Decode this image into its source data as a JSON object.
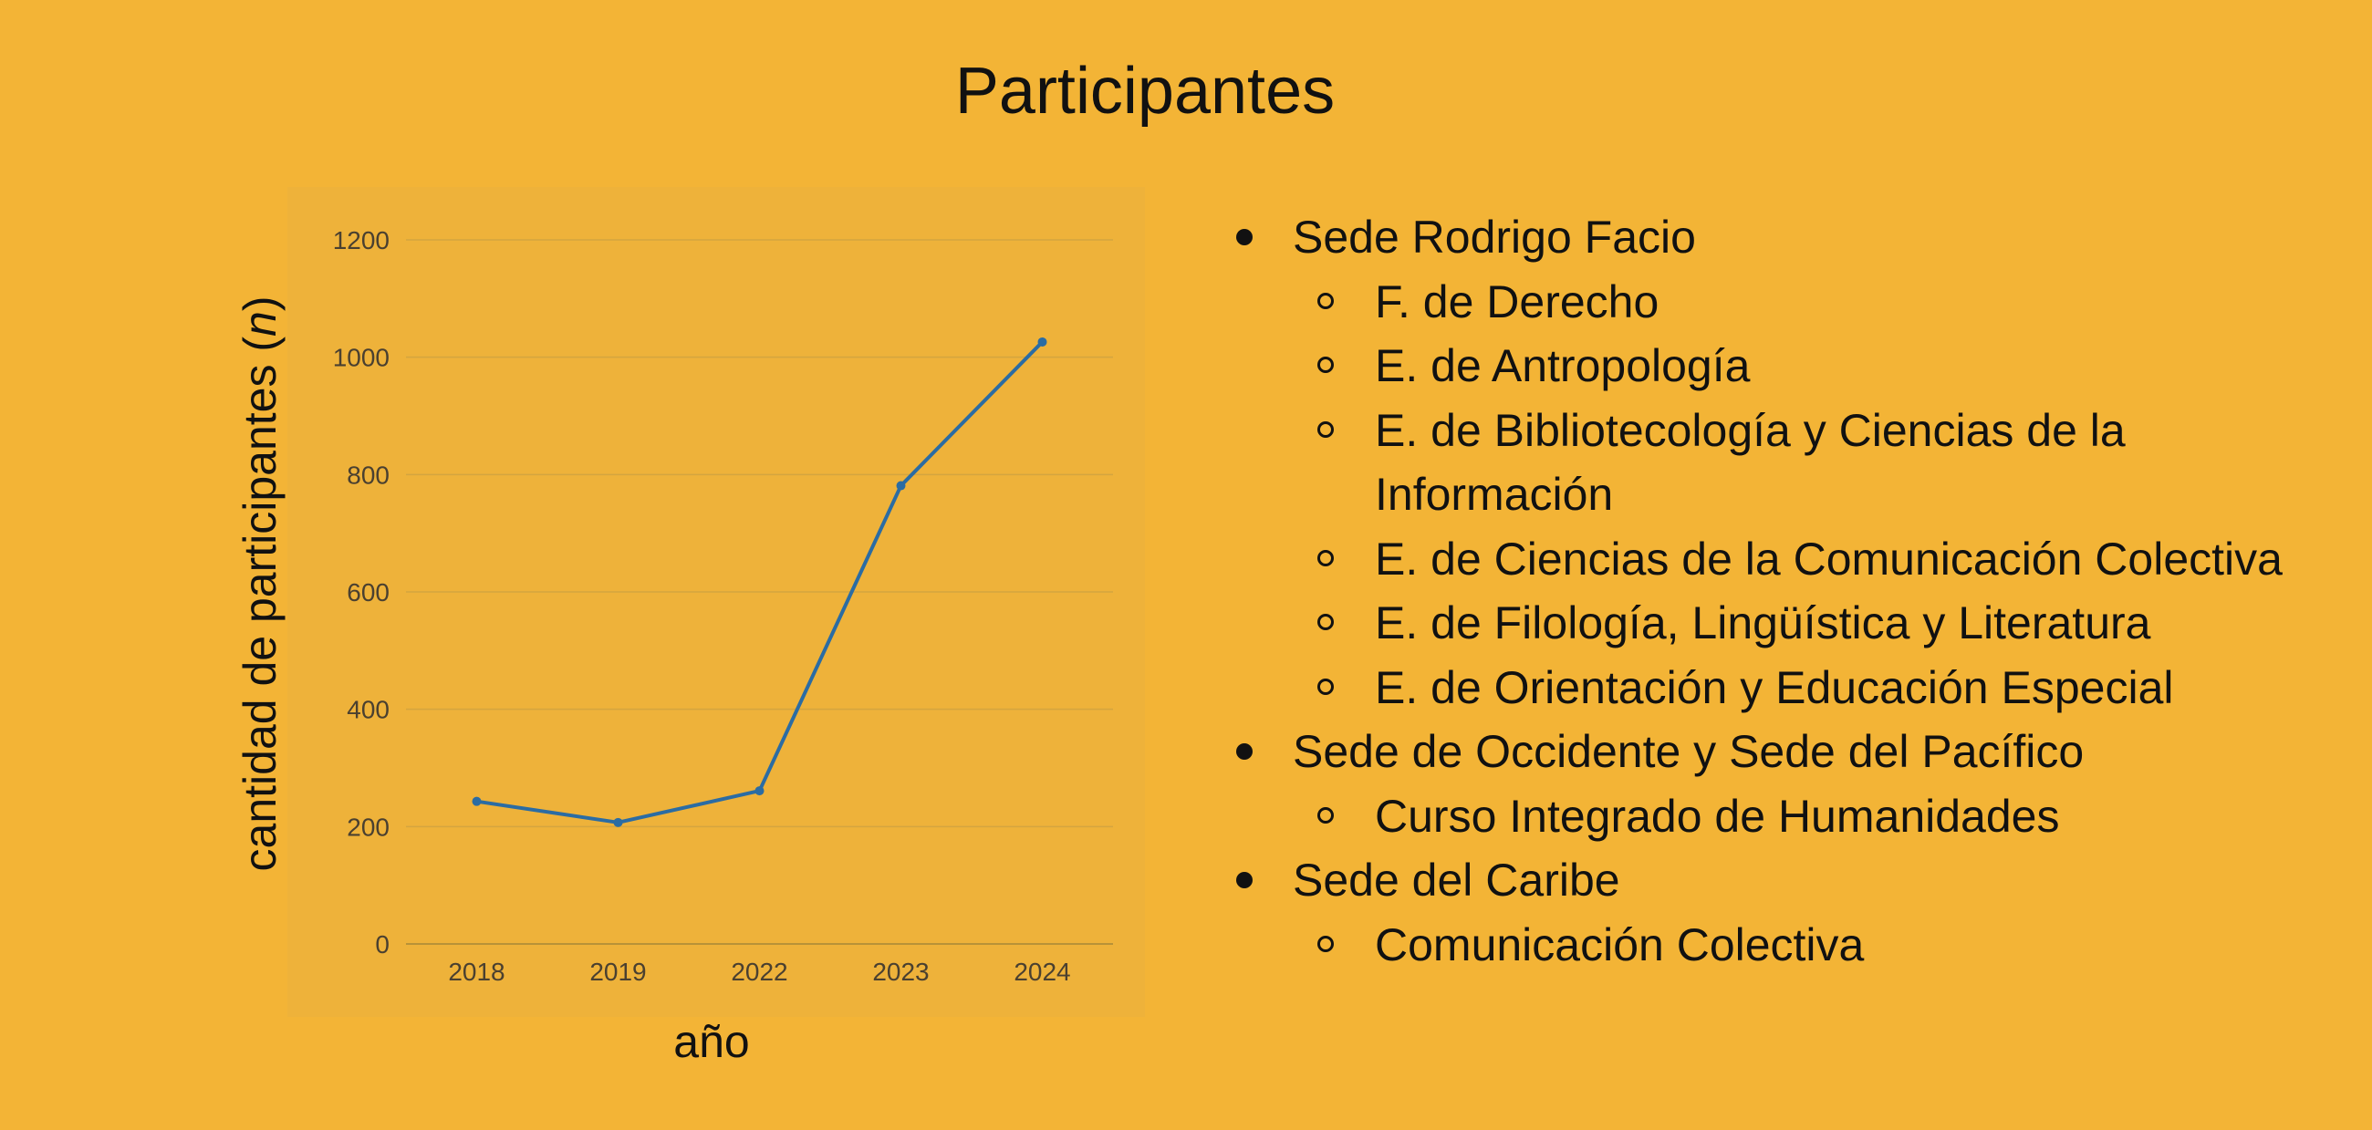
{
  "slide": {
    "title": "Participantes"
  },
  "chart_data": {
    "type": "line",
    "categories": [
      "2018",
      "2019",
      "2022",
      "2023",
      "2024"
    ],
    "values": [
      243,
      207,
      261,
      781,
      1026
    ],
    "xlabel": "año",
    "ylabel_prefix": "cantidad de participantes (",
    "ylabel_italic": "n",
    "ylabel_suffix": ")",
    "ylim": [
      0,
      1200
    ],
    "yticks": [
      0,
      200,
      400,
      600,
      800,
      1000,
      1200
    ],
    "grid": "horizontal",
    "legend": "none",
    "colors": {
      "line": "#2b6ca3",
      "grid": "#d4a53f",
      "plot_background": "#eeb23a",
      "page_background": "#f3b436"
    }
  },
  "participants": [
    {
      "campus": "Sede Rodrigo Facio",
      "units": [
        "F. de Derecho",
        "E. de Antropología",
        "E. de Bibliotecología y Ciencias de la Información",
        "E. de Ciencias de la Comunicación Colectiva",
        "E. de Filología, Lingüística y Literatura",
        "E. de Orientación y Educación Especial"
      ]
    },
    {
      "campus": "Sede de Occidente y Sede del Pacífico",
      "units": [
        "Curso Integrado de Humanidades"
      ]
    },
    {
      "campus": "Sede del Caribe",
      "units": [
        "Comunicación Colectiva"
      ]
    }
  ]
}
